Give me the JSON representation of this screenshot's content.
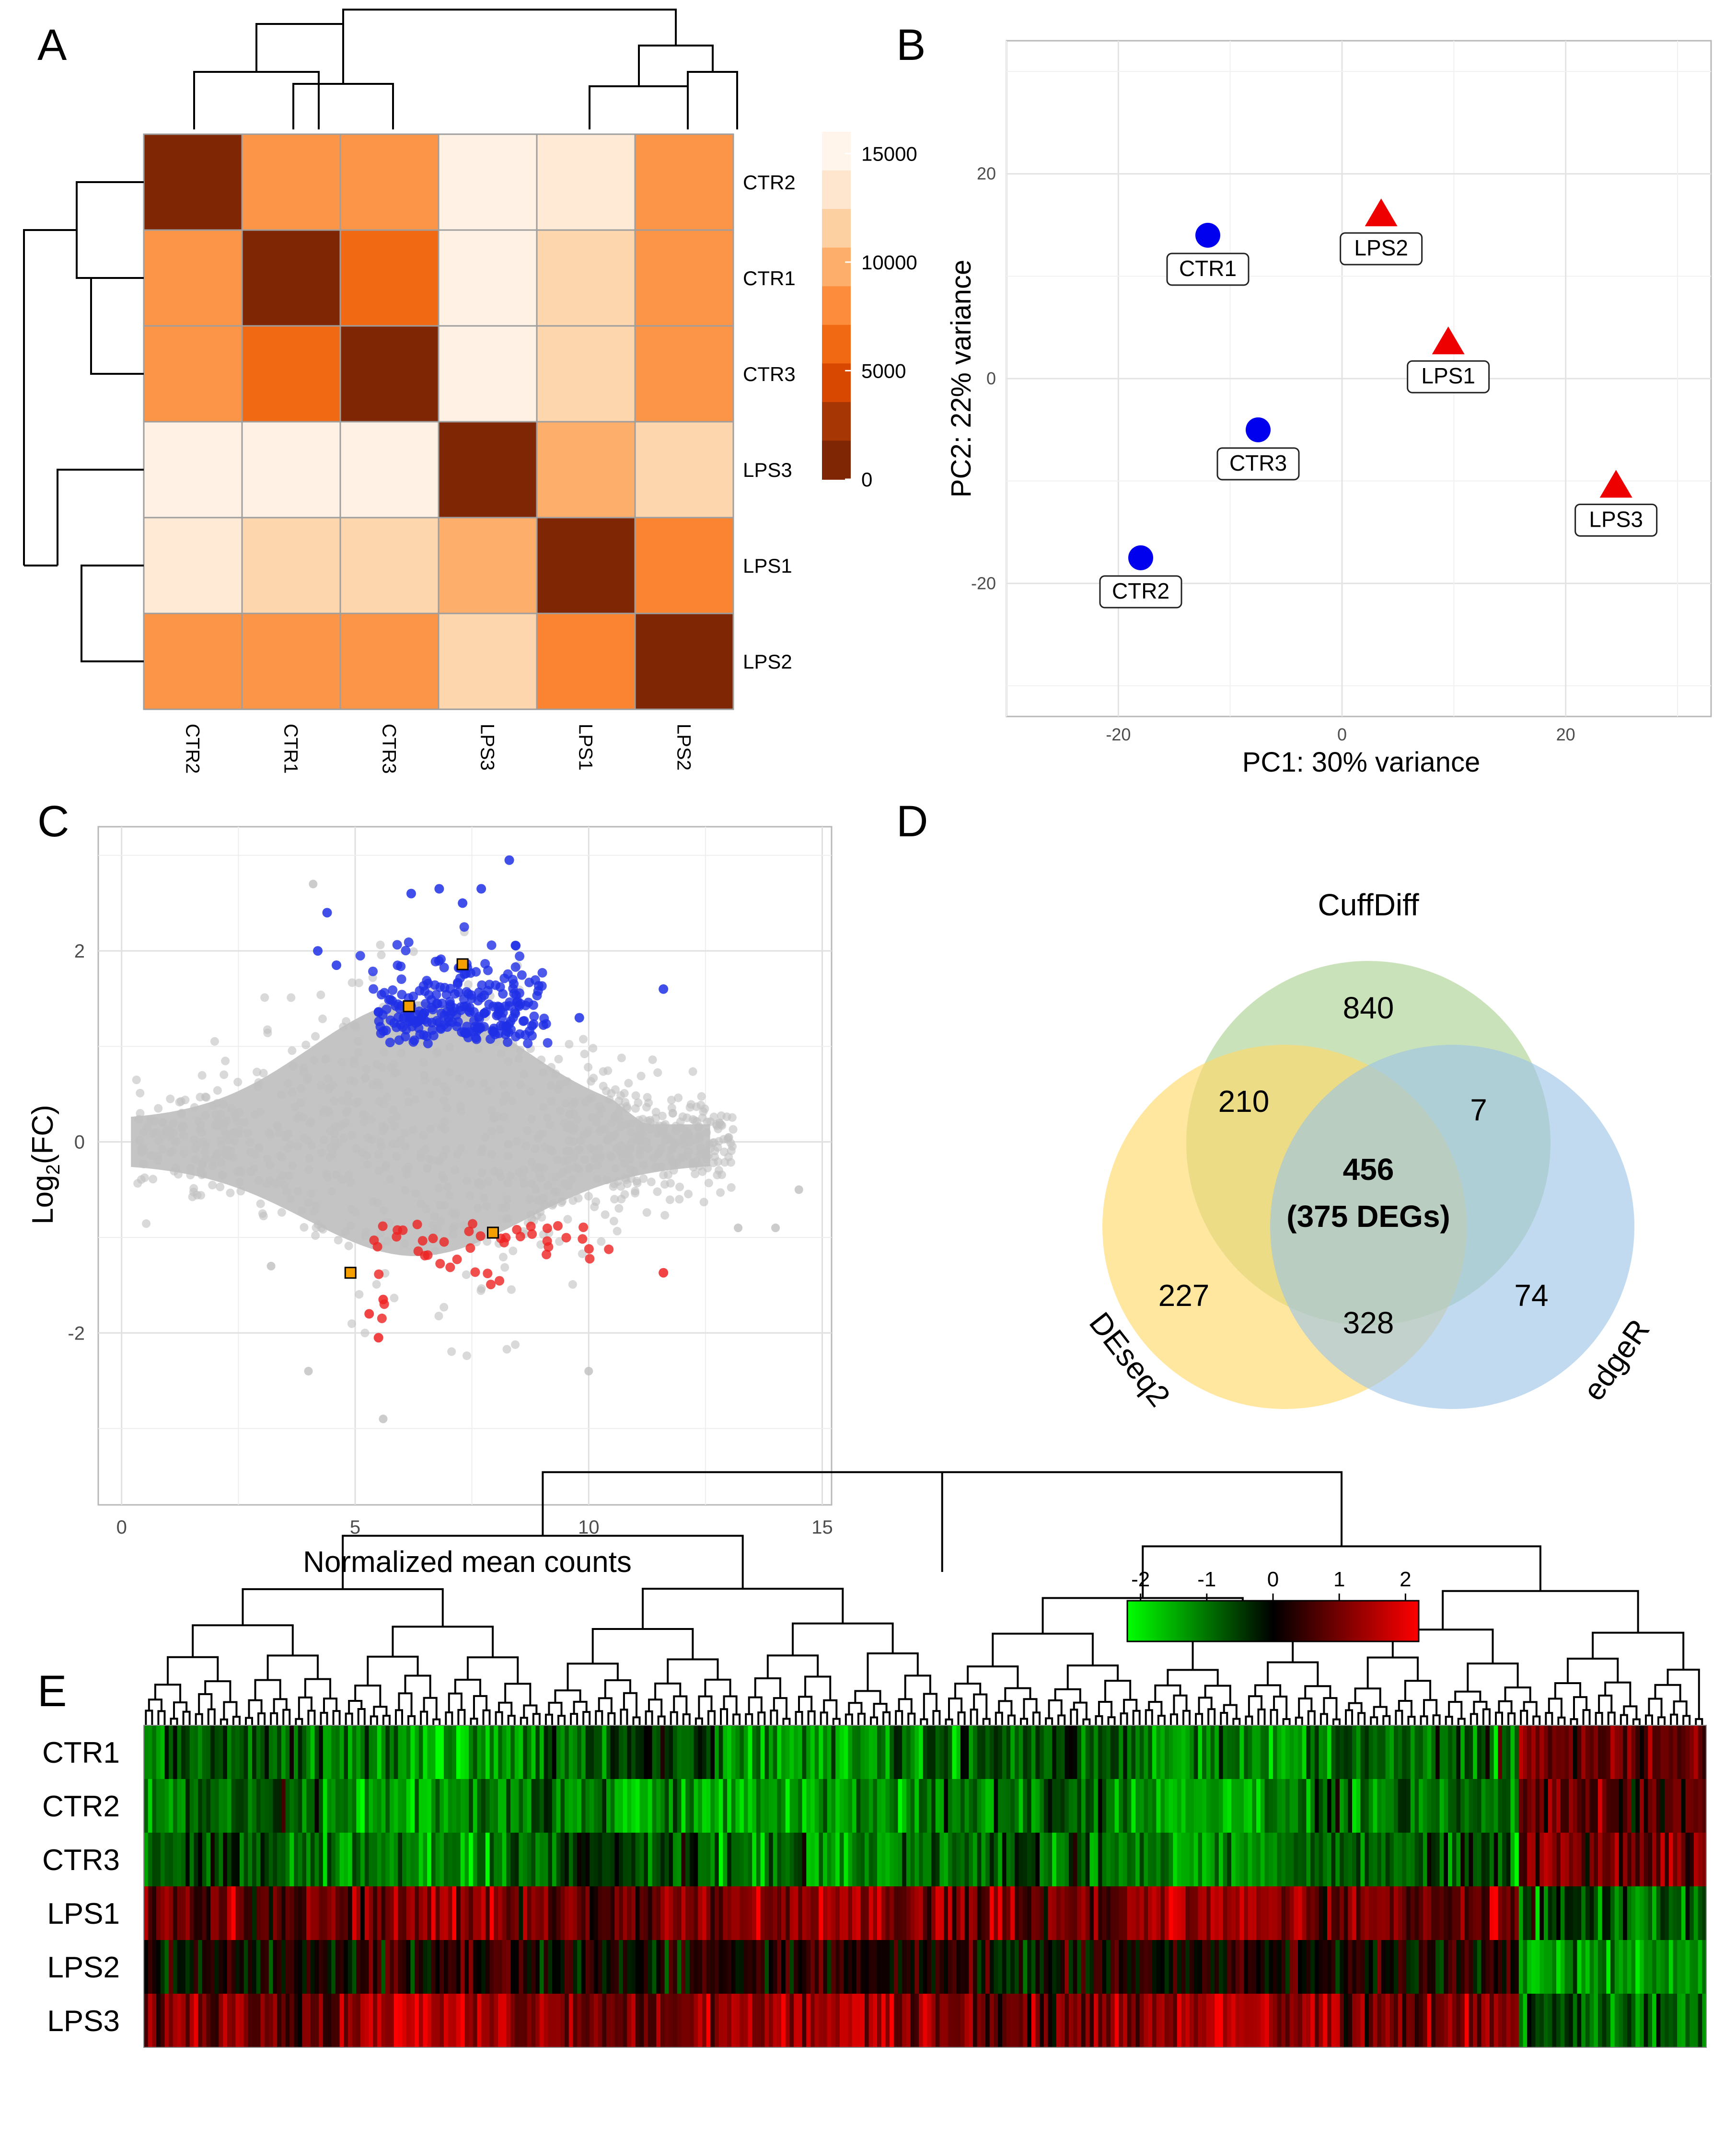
{
  "panels": {
    "a": "A",
    "b": "B",
    "c": "C",
    "d": "D",
    "e": "E"
  },
  "colors": {
    "heat": [
      "#7f2704",
      "#a63603",
      "#d94801",
      "#f16913",
      "#fd8d3c",
      "#fdae6b",
      "#fdd0a2",
      "#fee6ce",
      "#fff5eb"
    ],
    "ctr": "#0000ee",
    "lps": "#ee0000",
    "up": "#1f2fe6",
    "down": "#ee2222",
    "grey": "#bdbdbd",
    "highlight": "#f5a000",
    "venn": {
      "cuffdiff": "#a9d18e",
      "deseq2": "#ffd966",
      "edger": "#9dc3e6"
    }
  },
  "chart_data": [
    {
      "panel": "A",
      "type": "heatmap",
      "title": "",
      "samples": [
        "CTR2",
        "CTR1",
        "CTR3",
        "LPS3",
        "LPS1",
        "LPS2"
      ],
      "matrix": [
        [
          0,
          8500,
          8500,
          15500,
          14500,
          8500
        ],
        [
          8500,
          0,
          6000,
          15500,
          12500,
          8500
        ],
        [
          8500,
          6000,
          0,
          15500,
          12500,
          8500
        ],
        [
          15500,
          15500,
          15500,
          0,
          10000,
          12500
        ],
        [
          14500,
          12500,
          12500,
          10000,
          0,
          7500
        ],
        [
          8500,
          8500,
          8500,
          12500,
          7500,
          0
        ]
      ],
      "legend": {
        "ticks": [
          15000,
          10000,
          5000,
          0
        ],
        "range": [
          0,
          16000
        ]
      }
    },
    {
      "panel": "B",
      "type": "scatter",
      "xlabel": "PC1: 30% variance",
      "ylabel": "PC2: 22% variance",
      "xlim": [
        -30,
        33
      ],
      "ylim": [
        -33,
        33
      ],
      "xticks": [
        -20,
        0,
        20
      ],
      "yticks": [
        20,
        0,
        -20
      ],
      "points": [
        {
          "label": "CTR1",
          "x": -12,
          "y": 14,
          "group": "CTR"
        },
        {
          "label": "CTR3",
          "x": -7.5,
          "y": -5,
          "group": "CTR"
        },
        {
          "label": "CTR2",
          "x": -18,
          "y": -17.5,
          "group": "CTR"
        },
        {
          "label": "LPS2",
          "x": 3.5,
          "y": 16,
          "group": "LPS"
        },
        {
          "label": "LPS1",
          "x": 9.5,
          "y": 3.5,
          "group": "LPS"
        },
        {
          "label": "LPS3",
          "x": 24.5,
          "y": -10.5,
          "group": "LPS"
        }
      ]
    },
    {
      "panel": "C",
      "type": "scatter",
      "xlabel": "Normalized mean counts",
      "ylabel_main": "Log",
      "ylabel_sub": "2",
      "ylabel_tail": "(FC)",
      "xlim": [
        -0.5,
        15.2
      ],
      "ylim": [
        -3.8,
        3.3
      ],
      "xticks": [
        0,
        5,
        10,
        15
      ],
      "yticks": [
        2,
        0,
        -2
      ],
      "highlighted": [
        {
          "x": 6.15,
          "y": 1.42
        },
        {
          "x": 7.3,
          "y": 1.86
        },
        {
          "x": 7.95,
          "y": -0.95
        },
        {
          "x": 4.9,
          "y": -1.37
        }
      ]
    },
    {
      "panel": "D",
      "type": "venn",
      "sets": [
        "CuffDiff",
        "DEseq2",
        "edgeR"
      ],
      "regions": {
        "cuffdiff_only": "840",
        "cuffdiff_deseq2": "210",
        "cuffdiff_edger": "7",
        "all_three": "456",
        "all_three_note": "(375 DEGs)",
        "deseq2_only": "227",
        "deseq2_edger": "328",
        "edger_only": "74"
      }
    },
    {
      "panel": "E",
      "type": "heatmap",
      "rows": [
        "CTR1",
        "CTR2",
        "CTR3",
        "LPS1",
        "LPS2",
        "LPS3"
      ],
      "n_genes": 375,
      "colorbar": {
        "ticks": [
          "-2",
          "-1",
          "0",
          "1",
          "2"
        ],
        "range": [
          -2.2,
          2.2
        ]
      }
    }
  ]
}
